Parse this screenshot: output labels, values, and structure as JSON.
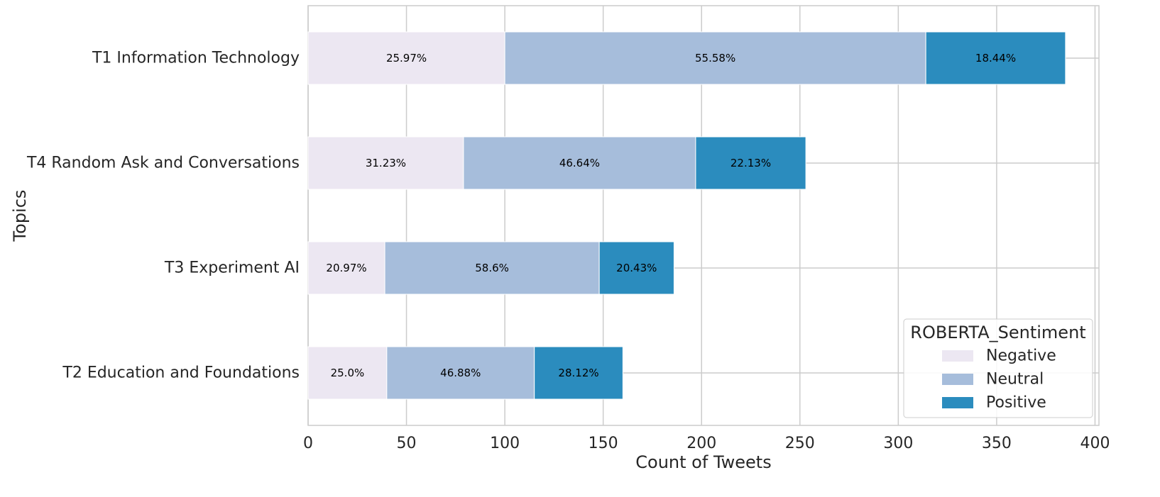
{
  "chart_data": {
    "type": "bar",
    "orientation": "horizontal",
    "stacked": true,
    "categories": [
      "T1 Information Technology",
      "T4 Random Ask and Conversations",
      "T3 Experiment AI",
      "T2 Education and Foundations"
    ],
    "series": [
      {
        "name": "Negative",
        "color": "#ece7f2",
        "values": [
          100,
          79,
          39,
          40
        ],
        "labels": [
          "25.97%",
          "31.23%",
          "20.97%",
          "25.0%"
        ]
      },
      {
        "name": "Neutral",
        "color": "#a6bddb",
        "values": [
          214,
          118,
          109,
          75
        ],
        "labels": [
          "55.58%",
          "46.64%",
          "58.6%",
          "46.88%"
        ]
      },
      {
        "name": "Positive",
        "color": "#2b8cbe",
        "values": [
          71,
          56,
          38,
          45
        ],
        "labels": [
          "18.44%",
          "22.13%",
          "20.43%",
          "28.12%"
        ]
      }
    ],
    "xlabel": "Count of Tweets",
    "ylabel": "Topics",
    "xlim": [
      0,
      402
    ],
    "xticks": [
      "0",
      "50",
      "100",
      "150",
      "200",
      "250",
      "300",
      "350",
      "400"
    ],
    "grid": true,
    "legend": {
      "title": "ROBERTA_Sentiment",
      "position": "lower-right"
    }
  }
}
